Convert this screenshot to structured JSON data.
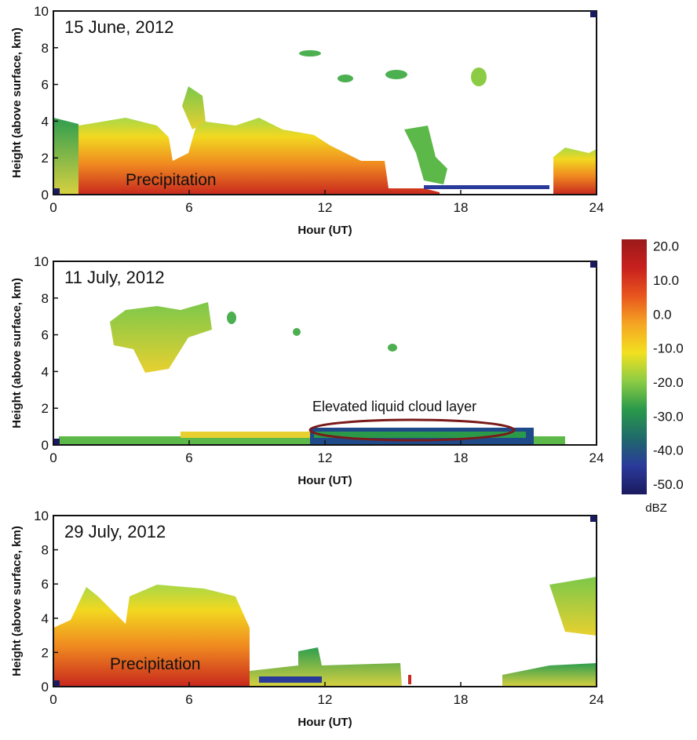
{
  "chart_data": [
    {
      "type": "heatmap",
      "title": "15 June, 2012",
      "xlabel": "Hour (UT)",
      "ylabel": "Height (above surface, km)",
      "xlim": [
        0,
        24
      ],
      "xticks": [
        0,
        6,
        12,
        18,
        24
      ],
      "ylim": [
        0,
        10
      ],
      "yticks": [
        0,
        2,
        4,
        6,
        8,
        10
      ],
      "annotations": [
        "Precipitation"
      ]
    },
    {
      "type": "heatmap",
      "title": "11 July, 2012",
      "xlabel": "Hour (UT)",
      "ylabel": "Height (above surface, km)",
      "xlim": [
        0,
        24
      ],
      "xticks": [
        0,
        6,
        12,
        18,
        24
      ],
      "ylim": [
        0,
        10
      ],
      "yticks": [
        0,
        2,
        4,
        6,
        8,
        10
      ],
      "annotations": [
        "Elevated liquid cloud layer"
      ]
    },
    {
      "type": "heatmap",
      "title": "29 July, 2012",
      "xlabel": "Hour (UT)",
      "ylabel": "Height (above surface, km)",
      "xlim": [
        0,
        24
      ],
      "xticks": [
        0,
        6,
        12,
        18,
        24
      ],
      "ylim": [
        0,
        10
      ],
      "yticks": [
        0,
        2,
        4,
        6,
        8,
        10
      ],
      "annotations": [
        "Precipitation"
      ]
    }
  ],
  "colorbar": {
    "label": "dBZ",
    "clim": [
      -53,
      22
    ],
    "ticks": [
      {
        "value": 20,
        "label": "20.0"
      },
      {
        "value": 10,
        "label": "10.0"
      },
      {
        "value": 0,
        "label": "0.0"
      },
      {
        "value": -10,
        "label": "-10.0"
      },
      {
        "value": -20,
        "label": "-20.0"
      },
      {
        "value": -30,
        "label": "-30.0"
      },
      {
        "value": -40,
        "label": "-40.0"
      },
      {
        "value": -50,
        "label": "-50.0"
      }
    ],
    "colors": [
      "#1a1a5e",
      "#2a3a9a",
      "#1f6a6a",
      "#2a9a4a",
      "#8ccc44",
      "#f2e020",
      "#f5a623",
      "#e8561e",
      "#c8201e",
      "#9a1a1a"
    ]
  }
}
